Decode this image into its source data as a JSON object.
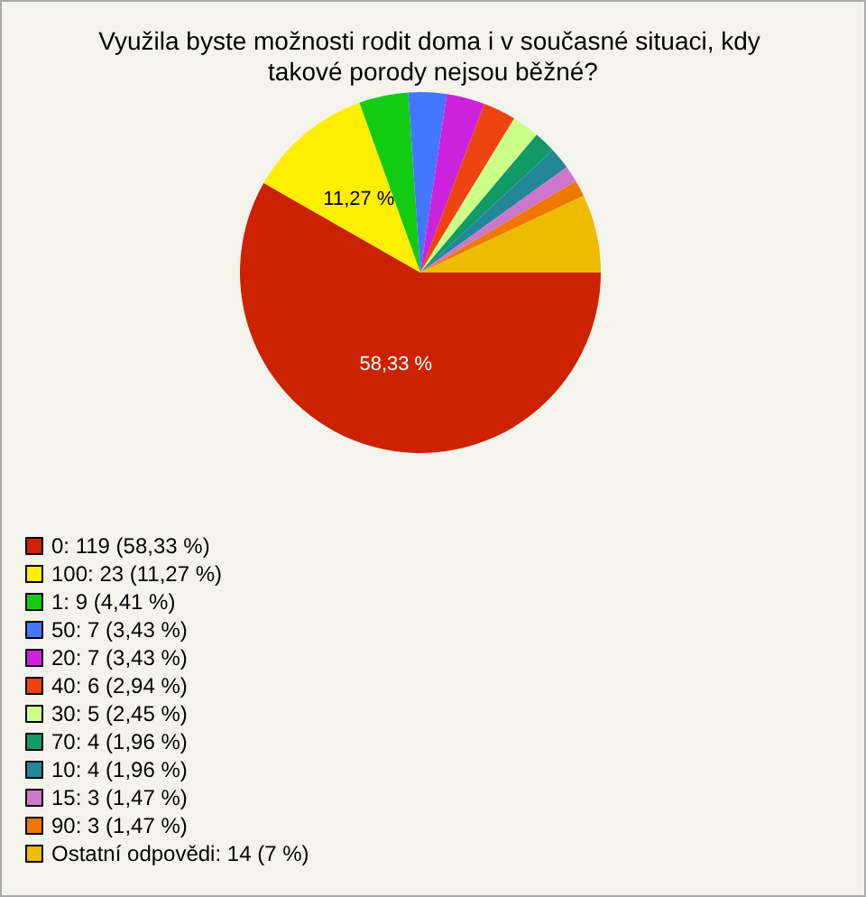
{
  "chart_data": {
    "type": "pie",
    "title": "Využila byste možnosti rodit doma i v současné situaci, kdy takové porody nejsou běžné?",
    "categories": [
      "0: 119 (58,33 %)",
      "100: 23 (11,27 %)",
      "1: 9 (4,41 %)",
      "50: 7 (3,43 %)",
      "20: 7 (3,43 %)",
      "40: 6 (2,94 %)",
      "30: 5 (2,45 %)",
      "70: 4 (1,96 %)",
      "10: 4 (1,96 %)",
      "15: 3 (1,47 %)",
      "90: 3 (1,47 %)",
      "Ostatní odpovědi: 14 (7 %)"
    ],
    "values": [
      58.33,
      11.27,
      4.41,
      3.43,
      3.43,
      2.94,
      2.45,
      1.96,
      1.96,
      1.47,
      1.47,
      7
    ],
    "value_labels": [
      "58,33 %",
      "11,27 %",
      null,
      null,
      null,
      null,
      null,
      null,
      null,
      null,
      null,
      null
    ],
    "colors": [
      "#cc2200",
      "#ffee00",
      "#11cc11",
      "#4477ff",
      "#cc22dd",
      "#ee4411",
      "#ccff88",
      "#119966",
      "#228899",
      "#cc77cc",
      "#ee7700",
      "#eebb00"
    ],
    "legend": "bottom left"
  }
}
